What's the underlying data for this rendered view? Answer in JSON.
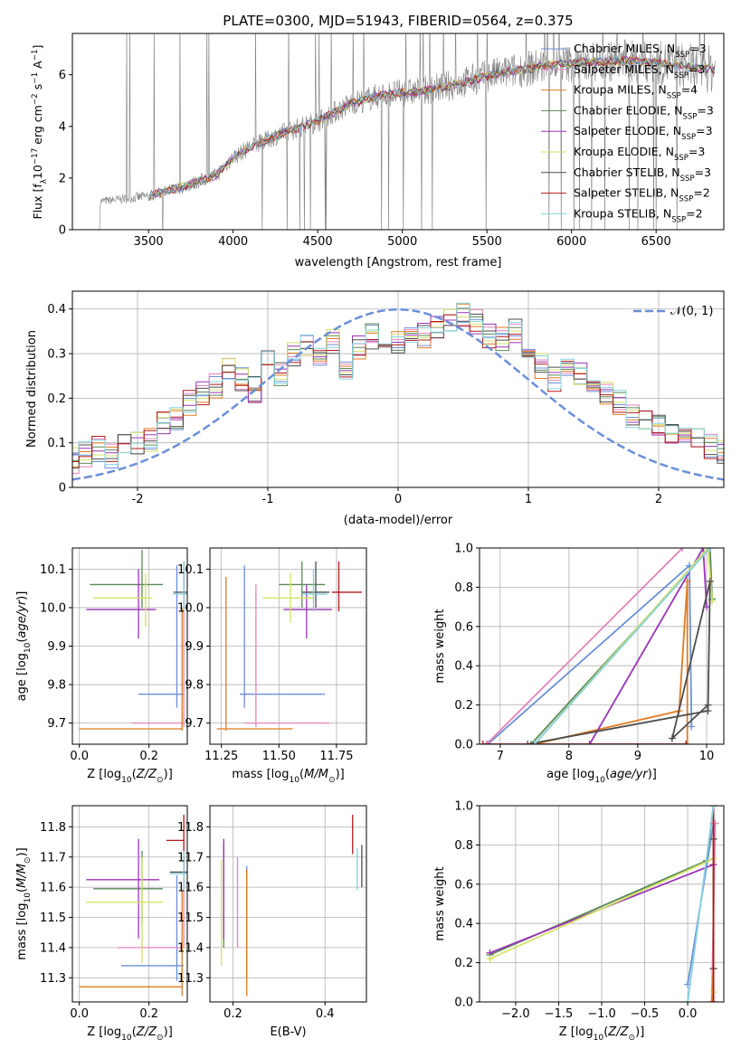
{
  "figure_title": "PLATE=0300, MJD=51943, FIBERID=0564, z=0.375",
  "colors": {
    "Chabrier MILES": "#6b8fd9",
    "Salpeter MILES": "#e383bb",
    "Kroupa MILES": "#e07b22",
    "Chabrier ELODIE": "#5a8a56",
    "Salpeter ELODIE": "#9a33b8",
    "Kroupa ELODIE": "#d4e066",
    "Chabrier STELIB": "#4d4d4d",
    "Salpeter STELIB": "#b01a1a",
    "Kroupa STELIB": "#86d0dd",
    "spectrum": "#808080",
    "gaussian": "#6b8fd9"
  },
  "chart_data": [
    {
      "id": "spectrum",
      "type": "line",
      "xlabel": "wavelength [Angstrom, rest frame]",
      "ylabel": "Flux [f$_\\lambda$10$^{-17}$ erg cm$^{-2}$ s$^{-1}$ A$^{-1}$]",
      "ylabel_parts": [
        "Flux [f",
        "λ",
        "10",
        "−17",
        " erg cm",
        "−2",
        " s",
        "−1",
        " A",
        "−1",
        "]"
      ],
      "xlim": [
        3050,
        6900
      ],
      "ylim": [
        0,
        7.6
      ],
      "xticks": [
        3500,
        4000,
        4500,
        5000,
        5500,
        6000,
        6500
      ],
      "yticks": [
        0,
        2,
        4,
        6
      ],
      "legend_position": "right",
      "legend": [
        {
          "prefix": "Chabrier MILES, N",
          "sub": "SSP",
          "suffix": "=3"
        },
        {
          "prefix": "Salpeter MILES, N",
          "sub": "SSP",
          "suffix": "=3"
        },
        {
          "prefix": "Kroupa MILES, N",
          "sub": "SSP",
          "suffix": "=4"
        },
        {
          "prefix": "Chabrier ELODIE, N",
          "sub": "SSP",
          "suffix": "=3"
        },
        {
          "prefix": "Salpeter ELODIE, N",
          "sub": "SSP",
          "suffix": "=3"
        },
        {
          "prefix": "Kroupa ELODIE, N",
          "sub": "SSP",
          "suffix": "=3"
        },
        {
          "prefix": "Chabrier STELIB, N",
          "sub": "SSP",
          "suffix": "=3"
        },
        {
          "prefix": "Salpeter STELIB, N",
          "sub": "SSP",
          "suffix": "=2"
        },
        {
          "prefix": "Kroupa STELIB, N",
          "sub": "SSP",
          "suffix": "=2"
        }
      ],
      "continuum": {
        "x": [
          3210,
          3300,
          3500,
          3700,
          3900,
          4000,
          4100,
          4300,
          4500,
          4700,
          4900,
          5100,
          5300,
          5500,
          5700,
          5900,
          6100,
          6300,
          6500,
          6600,
          6700,
          6850
        ],
        "y": [
          1.1,
          1.15,
          1.3,
          1.65,
          2.1,
          2.8,
          3.2,
          3.75,
          4.2,
          4.9,
          5.25,
          5.35,
          5.6,
          5.95,
          6.2,
          6.4,
          6.5,
          6.55,
          6.45,
          6.4,
          6.3,
          6.2
        ]
      }
    },
    {
      "id": "residuals",
      "type": "line",
      "xlabel": "(data-model)/error",
      "ylabel": "Normed distribution",
      "xlim": [
        -2.5,
        2.5
      ],
      "ylim": [
        0,
        0.44
      ],
      "xticks": [
        -2,
        -1,
        0,
        1,
        2
      ],
      "yticks": [
        0.0,
        0.1,
        0.2,
        0.3,
        0.4
      ],
      "bin_width": 0.1,
      "legend_label": "𝒩(0, 1)",
      "legend_position": "top-right",
      "histogram_base": [
        0.04,
        0.035,
        0.045,
        0.05,
        0.055,
        0.06,
        0.075,
        0.085,
        0.07,
        0.09,
        0.1,
        0.11,
        0.14,
        0.155,
        0.19,
        0.21,
        0.23,
        0.26,
        0.245,
        0.22,
        0.28,
        0.25,
        0.3,
        0.32,
        0.29,
        0.33,
        0.26,
        0.31,
        0.34,
        0.3,
        0.33,
        0.35,
        0.34,
        0.36,
        0.38,
        0.39,
        0.37,
        0.34,
        0.33,
        0.35,
        0.3,
        0.27,
        0.24,
        0.26,
        0.25,
        0.23,
        0.21,
        0.19,
        0.16,
        0.15,
        0.14,
        0.12,
        0.11,
        0.11,
        0.09,
        0.08,
        0.06,
        0.055,
        0.05,
        0.04,
        0.04
      ]
    },
    {
      "id": "age_vs_Z",
      "type": "scatter",
      "xlabel": "Z [log$_{10}$(Z/Z$_\\odot$)]",
      "ylabel": "age  [log$_{10}$(age/yr)]",
      "xlim": [
        -0.02,
        0.31
      ],
      "ylim": [
        9.645,
        10.155
      ],
      "xticks": [
        0.0,
        0.2
      ],
      "xticklabels": [
        "0.0",
        "0.2"
      ],
      "yticks": [
        9.7,
        9.8,
        9.9,
        10.0,
        10.1
      ],
      "yticklabels": [
        "9.7",
        "9.8",
        "9.9",
        "10.0",
        "10.1"
      ],
      "points": [
        {
          "model": "Chabrier MILES",
          "x": 0.28,
          "xerr": [
            0.17,
            0.3
          ],
          "y": 9.775,
          "yerr": [
            9.74,
            10.11
          ]
        },
        {
          "model": "Salpeter MILES",
          "x": 0.3,
          "xerr": [
            0.15,
            0.3
          ],
          "y": 9.7,
          "yerr": [
            9.69,
            10.1
          ]
        },
        {
          "model": "Kroupa MILES",
          "x": 0.295,
          "xerr": [
            0.0,
            0.295
          ],
          "y": 9.685,
          "yerr": [
            9.68,
            10.0
          ]
        },
        {
          "model": "Chabrier ELODIE",
          "x": 0.18,
          "xerr": [
            0.03,
            0.24
          ],
          "y": 10.06,
          "yerr": [
            10.0,
            10.15
          ]
        },
        {
          "model": "Salpeter ELODIE",
          "x": 0.17,
          "xerr": [
            0.02,
            0.22
          ],
          "y": 9.995,
          "yerr": [
            9.92,
            10.1
          ]
        },
        {
          "model": "Kroupa ELODIE",
          "x": 0.19,
          "xerr": [
            0.04,
            0.21
          ],
          "y": 10.025,
          "yerr": [
            9.95,
            10.09
          ]
        },
        {
          "model": "Chabrier STELIB",
          "x": 0.3,
          "xerr": [
            0.27,
            0.31
          ],
          "y": 10.04,
          "yerr": [
            10.0,
            10.12
          ]
        },
        {
          "model": "Kroupa STELIB",
          "x": 0.3,
          "xerr": [
            0.27,
            0.31
          ],
          "y": 10.035,
          "yerr": [
            9.99,
            10.12
          ]
        }
      ]
    },
    {
      "id": "age_vs_mass",
      "type": "scatter",
      "xlabel": "mass [log$_{10}$(M/M$_\\odot$)]",
      "ylabel": "",
      "xlim": [
        11.2,
        11.88
      ],
      "ylim": [
        9.645,
        10.155
      ],
      "xticks": [
        11.25,
        11.5,
        11.75
      ],
      "xticklabels": [
        "11.25",
        "11.50",
        "11.75"
      ],
      "yticks": [
        9.7,
        9.8,
        9.9,
        10.0,
        10.1
      ],
      "yticklabels": [
        "9.7",
        "9.8",
        "9.9",
        "10.0",
        "10.1"
      ],
      "points": [
        {
          "model": "Chabrier MILES",
          "x": 11.35,
          "xerr": [
            11.33,
            11.7
          ],
          "y": 9.775,
          "yerr": [
            9.74,
            10.11
          ]
        },
        {
          "model": "Salpeter MILES",
          "x": 11.4,
          "xerr": [
            11.35,
            11.72
          ],
          "y": 9.7,
          "yerr": [
            9.69,
            10.06
          ]
        },
        {
          "model": "Kroupa MILES",
          "x": 11.27,
          "xerr": [
            11.23,
            11.56
          ],
          "y": 9.685,
          "yerr": [
            9.68,
            10.08
          ]
        },
        {
          "model": "Chabrier ELODIE",
          "x": 11.6,
          "xerr": [
            11.5,
            11.7
          ],
          "y": 10.06,
          "yerr": [
            10.0,
            10.12
          ]
        },
        {
          "model": "Salpeter ELODIE",
          "x": 11.62,
          "xerr": [
            11.52,
            11.73
          ],
          "y": 9.995,
          "yerr": [
            9.92,
            10.06
          ]
        },
        {
          "model": "Kroupa ELODIE",
          "x": 11.55,
          "xerr": [
            11.43,
            11.65
          ],
          "y": 10.025,
          "yerr": [
            9.96,
            10.09
          ]
        },
        {
          "model": "Chabrier STELIB",
          "x": 11.66,
          "xerr": [
            11.6,
            11.72
          ],
          "y": 10.04,
          "yerr": [
            10.0,
            10.12
          ]
        },
        {
          "model": "Salpeter STELIB",
          "x": 11.76,
          "xerr": [
            11.73,
            11.86
          ],
          "y": 10.04,
          "yerr": [
            9.99,
            10.12
          ]
        },
        {
          "model": "Kroupa STELIB",
          "x": 11.65,
          "xerr": [
            11.6,
            11.71
          ],
          "y": 10.035,
          "yerr": [
            9.99,
            10.1
          ]
        }
      ]
    },
    {
      "id": "weight_vs_age",
      "type": "line",
      "xlabel": "age  [log$_{10}$(age/yr)]",
      "ylabel": "mass weight",
      "xlim": [
        6.7,
        10.25
      ],
      "ylim": [
        0,
        1.0
      ],
      "xticks": [
        7,
        8,
        9,
        10
      ],
      "xticklabels": [
        "7",
        "8",
        "9",
        "10"
      ],
      "yticks": [
        0.0,
        0.2,
        0.4,
        0.6,
        0.8,
        1.0
      ],
      "yticklabels": [
        "0.0",
        "0.2",
        "0.4",
        "0.6",
        "0.8",
        "1.0"
      ],
      "series": [
        {
          "model": "Chabrier MILES",
          "x": [
            6.82,
            9.75,
            9.78
          ],
          "y": [
            0.0,
            0.91,
            0.09
          ]
        },
        {
          "model": "Salpeter MILES",
          "x": [
            6.8,
            9.65
          ],
          "y": [
            0.0,
            1.0
          ]
        },
        {
          "model": "Kroupa MILES",
          "x": [
            7.5,
            9.6,
            9.72,
            9.72
          ],
          "y": [
            0.0,
            0.17,
            0.83,
            0.0
          ]
        },
        {
          "model": "Chabrier ELODIE",
          "x": [
            7.45,
            10.05,
            10.08
          ],
          "y": [
            0.0,
            1.0,
            0.74
          ]
        },
        {
          "model": "Salpeter ELODIE",
          "x": [
            8.3,
            9.95,
            10.0
          ],
          "y": [
            0.0,
            1.0,
            0.7
          ]
        },
        {
          "model": "Kroupa ELODIE",
          "x": [
            7.5,
            10.02,
            10.08
          ],
          "y": [
            0.0,
            1.0,
            0.73
          ]
        },
        {
          "model": "Chabrier STELIB",
          "x": [
            7.4,
            10.02,
            10.05,
            9.5,
            10.02
          ],
          "y": [
            0.0,
            0.17,
            0.83,
            0.03,
            0.2
          ]
        },
        {
          "model": "Salpeter STELIB",
          "x": [
            6.75,
            9.7
          ],
          "y": [
            0.0,
            0.0
          ]
        },
        {
          "model": "Kroupa STELIB",
          "x": [
            7.5,
            10.05
          ],
          "y": [
            0.0,
            1.0
          ]
        }
      ]
    },
    {
      "id": "mass_vs_Z",
      "type": "scatter",
      "xlabel": "Z [log$_{10}$(Z/Z$_\\odot$)]",
      "ylabel": "mass [log$_{10}$(M/M$_\\odot$)]",
      "xlim": [
        -0.02,
        0.31
      ],
      "ylim": [
        11.22,
        11.87
      ],
      "xticks": [
        0.0,
        0.2
      ],
      "xticklabels": [
        "0.0",
        "0.2"
      ],
      "yticks": [
        11.3,
        11.4,
        11.5,
        11.6,
        11.7,
        11.8
      ],
      "yticklabels": [
        "11.3",
        "11.4",
        "11.5",
        "11.6",
        "11.7",
        "11.8"
      ],
      "points": [
        {
          "model": "Chabrier MILES",
          "x": 0.28,
          "xerr": [
            0.12,
            0.3
          ],
          "y": 11.34,
          "yerr": [
            11.29,
            11.64
          ]
        },
        {
          "model": "Salpeter MILES",
          "x": 0.3,
          "xerr": [
            0.11,
            0.3
          ],
          "y": 11.4,
          "yerr": [
            11.4,
            11.7
          ]
        },
        {
          "model": "Kroupa MILES",
          "x": 0.295,
          "xerr": [
            0.0,
            0.295
          ],
          "y": 11.27,
          "yerr": [
            11.24,
            11.59
          ]
        },
        {
          "model": "Chabrier ELODIE",
          "x": 0.18,
          "xerr": [
            0.04,
            0.24
          ],
          "y": 11.595,
          "yerr": [
            11.48,
            11.72
          ]
        },
        {
          "model": "Salpeter ELODIE",
          "x": 0.17,
          "xerr": [
            0.02,
            0.23
          ],
          "y": 11.625,
          "yerr": [
            11.43,
            11.76
          ]
        },
        {
          "model": "Kroupa ELODIE",
          "x": 0.18,
          "xerr": [
            0.02,
            0.24
          ],
          "y": 11.55,
          "yerr": [
            11.35,
            11.7
          ]
        },
        {
          "model": "Chabrier STELIB",
          "x": 0.3,
          "xerr": [
            0.26,
            0.31
          ],
          "y": 11.65,
          "yerr": [
            11.6,
            11.7
          ]
        },
        {
          "model": "Salpeter STELIB",
          "x": 0.3,
          "xerr": [
            0.25,
            0.3
          ],
          "y": 11.755,
          "yerr": [
            11.68,
            11.84
          ]
        },
        {
          "model": "Kroupa STELIB",
          "x": 0.3,
          "xerr": [
            0.26,
            0.31
          ],
          "y": 11.645,
          "yerr": [
            11.59,
            11.72
          ]
        }
      ]
    },
    {
      "id": "mass_vs_EBV",
      "type": "scatter",
      "xlabel": "E(B-V)",
      "ylabel": "",
      "xlim": [
        0.15,
        0.49
      ],
      "ylim": [
        11.22,
        11.87
      ],
      "xticks": [
        0.2,
        0.4
      ],
      "xticklabels": [
        "0.2",
        "0.4"
      ],
      "yticks": [
        11.3,
        11.4,
        11.5,
        11.6,
        11.7,
        11.8
      ],
      "yticklabels": [
        "11.3",
        "11.4",
        "11.5",
        "11.6",
        "11.7",
        "11.8"
      ],
      "points": [
        {
          "model": "Chabrier MILES",
          "x": 0.23,
          "y": 11.48,
          "yerr": [
            11.3,
            11.67
          ]
        },
        {
          "model": "Salpeter MILES",
          "x": 0.21,
          "y": 11.55,
          "yerr": [
            11.4,
            11.7
          ]
        },
        {
          "model": "Kroupa MILES",
          "x": 0.23,
          "y": 11.45,
          "yerr": [
            11.24,
            11.66
          ]
        },
        {
          "model": "Chabrier ELODIE",
          "x": 0.18,
          "y": 11.58,
          "yerr": [
            11.4,
            11.74
          ]
        },
        {
          "model": "Salpeter ELODIE",
          "x": 0.18,
          "y": 11.6,
          "yerr": [
            11.43,
            11.76
          ]
        },
        {
          "model": "Kroupa ELODIE",
          "x": 0.175,
          "y": 11.52,
          "yerr": [
            11.34,
            11.69
          ]
        },
        {
          "model": "Chabrier STELIB",
          "x": 0.48,
          "y": 11.67,
          "yerr": [
            11.6,
            11.74
          ]
        },
        {
          "model": "Salpeter STELIB",
          "x": 0.46,
          "y": 11.77,
          "yerr": [
            11.71,
            11.84
          ]
        },
        {
          "model": "Kroupa STELIB",
          "x": 0.47,
          "y": 11.66,
          "yerr": [
            11.59,
            11.73
          ]
        }
      ]
    },
    {
      "id": "weight_vs_Z",
      "type": "line",
      "xlabel": "Z [log$_{10}$(Z/Z$_\\odot$)]",
      "ylabel": "mass weight",
      "xlim": [
        -2.42,
        0.42
      ],
      "ylim": [
        0,
        1.0
      ],
      "xticks": [
        -2.0,
        -1.5,
        -1.0,
        -0.5,
        0.0
      ],
      "xticklabels": [
        "−2.0",
        "−1.5",
        "−1.0",
        "−0.5",
        "0.0"
      ],
      "yticks": [
        0.0,
        0.2,
        0.4,
        0.6,
        0.8,
        1.0
      ],
      "yticklabels": [
        "0.0",
        "0.2",
        "0.4",
        "0.6",
        "0.8",
        "1.0"
      ],
      "series": [
        {
          "model": "Chabrier MILES",
          "x": [
            0.0,
            0.3
          ],
          "y": [
            0.09,
            0.91
          ]
        },
        {
          "model": "Salpeter MILES",
          "x": [
            0.28,
            0.32
          ],
          "y": [
            0.0,
            0.91
          ]
        },
        {
          "model": "Kroupa MILES",
          "x": [
            0.28,
            0.3,
            0.3
          ],
          "y": [
            0.0,
            0.17,
            0.83
          ]
        },
        {
          "model": "Chabrier ELODIE",
          "x": [
            -2.3,
            0.22,
            0.3
          ],
          "y": [
            0.24,
            0.72,
            1.0
          ]
        },
        {
          "model": "Salpeter ELODIE",
          "x": [
            -2.3,
            0.3
          ],
          "y": [
            0.25,
            0.7
          ]
        },
        {
          "model": "Kroupa ELODIE",
          "x": [
            -2.3,
            0.3,
            0.3
          ],
          "y": [
            0.22,
            0.73,
            0.05
          ]
        },
        {
          "model": "Chabrier STELIB",
          "x": [
            0.3,
            0.3
          ],
          "y": [
            0.17,
            0.83
          ]
        },
        {
          "model": "Salpeter STELIB",
          "x": [
            0.3,
            0.3
          ],
          "y": [
            0.0,
            1.0
          ]
        },
        {
          "model": "Kroupa STELIB",
          "x": [
            0.0,
            0.3
          ],
          "y": [
            0.0,
            1.0
          ]
        }
      ]
    }
  ]
}
